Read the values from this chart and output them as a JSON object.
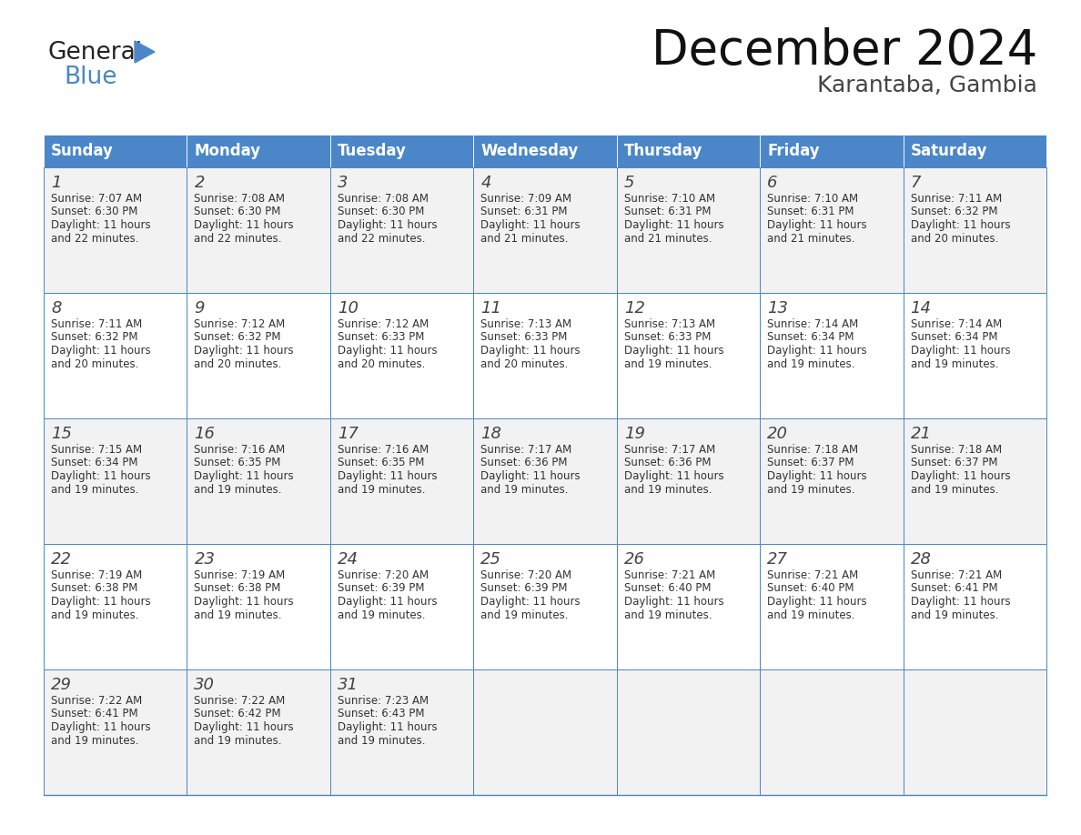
{
  "title": "December 2024",
  "subtitle": "Karantaba, Gambia",
  "header_color": "#4a86c8",
  "header_text_color": "#ffffff",
  "cell_bg_alt": "#f2f2f2",
  "cell_bg_white": "#ffffff",
  "cell_border_color": "#4a86c8",
  "day_number_color": "#444444",
  "cell_text_color": "#333333",
  "days_of_week": [
    "Sunday",
    "Monday",
    "Tuesday",
    "Wednesday",
    "Thursday",
    "Friday",
    "Saturday"
  ],
  "weeks": [
    [
      {
        "day": 1,
        "sunrise": "7:07 AM",
        "sunset": "6:30 PM",
        "daylight_hours": 11,
        "daylight_min": "22 minutes."
      },
      {
        "day": 2,
        "sunrise": "7:08 AM",
        "sunset": "6:30 PM",
        "daylight_hours": 11,
        "daylight_min": "22 minutes."
      },
      {
        "day": 3,
        "sunrise": "7:08 AM",
        "sunset": "6:30 PM",
        "daylight_hours": 11,
        "daylight_min": "22 minutes."
      },
      {
        "day": 4,
        "sunrise": "7:09 AM",
        "sunset": "6:31 PM",
        "daylight_hours": 11,
        "daylight_min": "21 minutes."
      },
      {
        "day": 5,
        "sunrise": "7:10 AM",
        "sunset": "6:31 PM",
        "daylight_hours": 11,
        "daylight_min": "21 minutes."
      },
      {
        "day": 6,
        "sunrise": "7:10 AM",
        "sunset": "6:31 PM",
        "daylight_hours": 11,
        "daylight_min": "21 minutes."
      },
      {
        "day": 7,
        "sunrise": "7:11 AM",
        "sunset": "6:32 PM",
        "daylight_hours": 11,
        "daylight_min": "20 minutes."
      }
    ],
    [
      {
        "day": 8,
        "sunrise": "7:11 AM",
        "sunset": "6:32 PM",
        "daylight_hours": 11,
        "daylight_min": "20 minutes."
      },
      {
        "day": 9,
        "sunrise": "7:12 AM",
        "sunset": "6:32 PM",
        "daylight_hours": 11,
        "daylight_min": "20 minutes."
      },
      {
        "day": 10,
        "sunrise": "7:12 AM",
        "sunset": "6:33 PM",
        "daylight_hours": 11,
        "daylight_min": "20 minutes."
      },
      {
        "day": 11,
        "sunrise": "7:13 AM",
        "sunset": "6:33 PM",
        "daylight_hours": 11,
        "daylight_min": "20 minutes."
      },
      {
        "day": 12,
        "sunrise": "7:13 AM",
        "sunset": "6:33 PM",
        "daylight_hours": 11,
        "daylight_min": "19 minutes."
      },
      {
        "day": 13,
        "sunrise": "7:14 AM",
        "sunset": "6:34 PM",
        "daylight_hours": 11,
        "daylight_min": "19 minutes."
      },
      {
        "day": 14,
        "sunrise": "7:14 AM",
        "sunset": "6:34 PM",
        "daylight_hours": 11,
        "daylight_min": "19 minutes."
      }
    ],
    [
      {
        "day": 15,
        "sunrise": "7:15 AM",
        "sunset": "6:34 PM",
        "daylight_hours": 11,
        "daylight_min": "19 minutes."
      },
      {
        "day": 16,
        "sunrise": "7:16 AM",
        "sunset": "6:35 PM",
        "daylight_hours": 11,
        "daylight_min": "19 minutes."
      },
      {
        "day": 17,
        "sunrise": "7:16 AM",
        "sunset": "6:35 PM",
        "daylight_hours": 11,
        "daylight_min": "19 minutes."
      },
      {
        "day": 18,
        "sunrise": "7:17 AM",
        "sunset": "6:36 PM",
        "daylight_hours": 11,
        "daylight_min": "19 minutes."
      },
      {
        "day": 19,
        "sunrise": "7:17 AM",
        "sunset": "6:36 PM",
        "daylight_hours": 11,
        "daylight_min": "19 minutes."
      },
      {
        "day": 20,
        "sunrise": "7:18 AM",
        "sunset": "6:37 PM",
        "daylight_hours": 11,
        "daylight_min": "19 minutes."
      },
      {
        "day": 21,
        "sunrise": "7:18 AM",
        "sunset": "6:37 PM",
        "daylight_hours": 11,
        "daylight_min": "19 minutes."
      }
    ],
    [
      {
        "day": 22,
        "sunrise": "7:19 AM",
        "sunset": "6:38 PM",
        "daylight_hours": 11,
        "daylight_min": "19 minutes."
      },
      {
        "day": 23,
        "sunrise": "7:19 AM",
        "sunset": "6:38 PM",
        "daylight_hours": 11,
        "daylight_min": "19 minutes."
      },
      {
        "day": 24,
        "sunrise": "7:20 AM",
        "sunset": "6:39 PM",
        "daylight_hours": 11,
        "daylight_min": "19 minutes."
      },
      {
        "day": 25,
        "sunrise": "7:20 AM",
        "sunset": "6:39 PM",
        "daylight_hours": 11,
        "daylight_min": "19 minutes."
      },
      {
        "day": 26,
        "sunrise": "7:21 AM",
        "sunset": "6:40 PM",
        "daylight_hours": 11,
        "daylight_min": "19 minutes."
      },
      {
        "day": 27,
        "sunrise": "7:21 AM",
        "sunset": "6:40 PM",
        "daylight_hours": 11,
        "daylight_min": "19 minutes."
      },
      {
        "day": 28,
        "sunrise": "7:21 AM",
        "sunset": "6:41 PM",
        "daylight_hours": 11,
        "daylight_min": "19 minutes."
      }
    ],
    [
      {
        "day": 29,
        "sunrise": "7:22 AM",
        "sunset": "6:41 PM",
        "daylight_hours": 11,
        "daylight_min": "19 minutes."
      },
      {
        "day": 30,
        "sunrise": "7:22 AM",
        "sunset": "6:42 PM",
        "daylight_hours": 11,
        "daylight_min": "19 minutes."
      },
      {
        "day": 31,
        "sunrise": "7:23 AM",
        "sunset": "6:43 PM",
        "daylight_hours": 11,
        "daylight_min": "19 minutes."
      },
      null,
      null,
      null,
      null
    ]
  ],
  "logo_general_color": "#222222",
  "logo_blue_color": "#4a86c8",
  "logo_triangle_color": "#4a86c8",
  "title_fontsize": 38,
  "subtitle_fontsize": 18,
  "header_fontsize": 12,
  "day_num_fontsize": 13,
  "cell_text_fontsize": 8.5
}
